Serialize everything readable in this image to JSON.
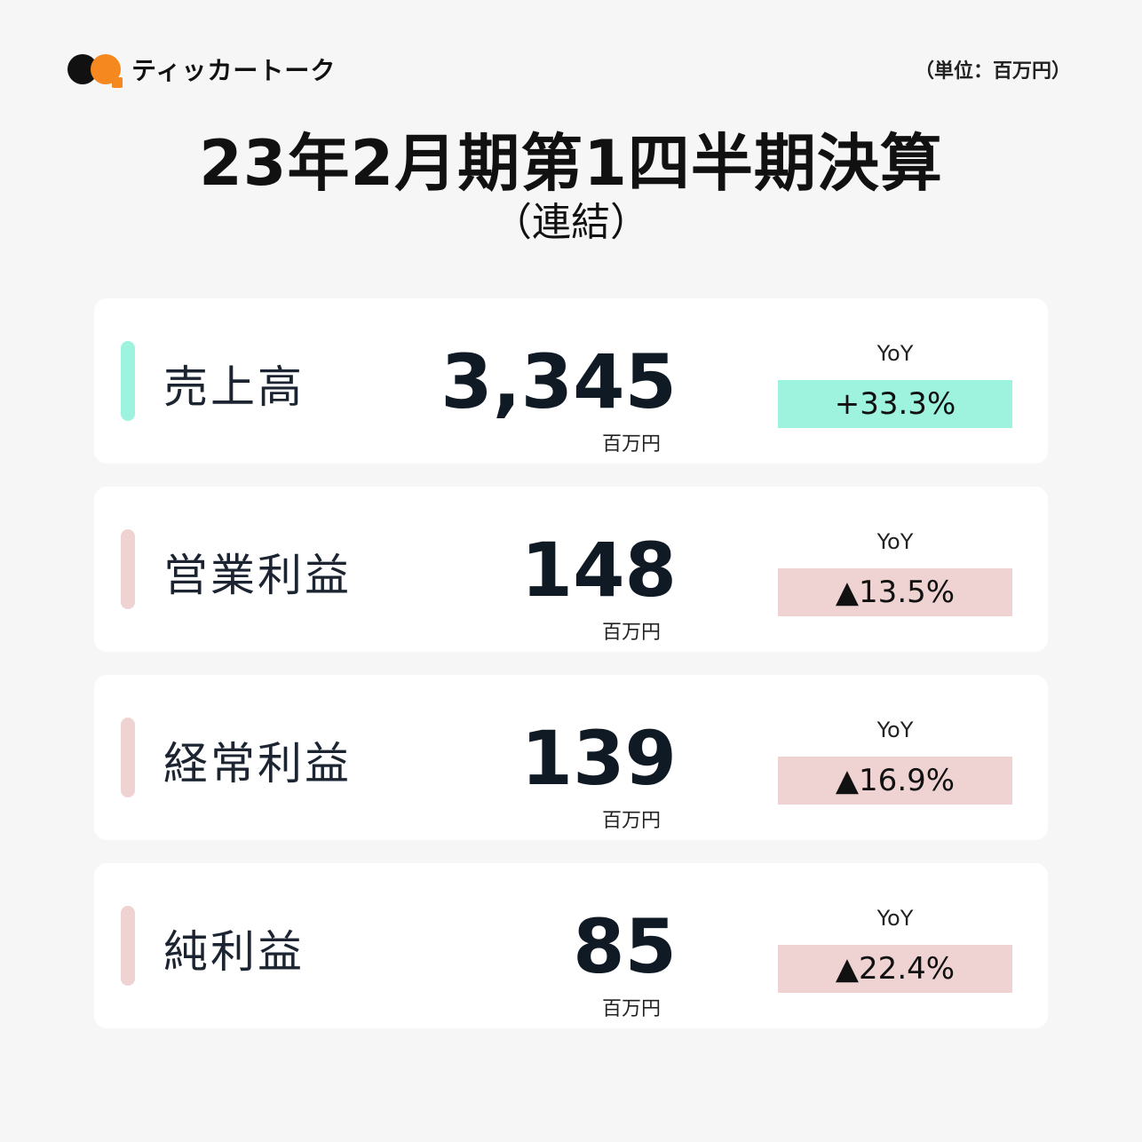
{
  "brand": {
    "name": "ティッカートーク",
    "logo_icon": "two-dots-speech-logo"
  },
  "unit_note": "（単位：百万円）",
  "title": "23年2月期第1四半期決算",
  "subtitle": "（連結）",
  "colors": {
    "positive": "#9ef3df",
    "negative": "#efd3d2"
  },
  "metrics": [
    {
      "label": "売上高",
      "value": "3,345",
      "unit": "百万円",
      "yoy_label": "YoY",
      "yoy": "+33.3%",
      "trend": "positive"
    },
    {
      "label": "営業利益",
      "value": "148",
      "unit": "百万円",
      "yoy_label": "YoY",
      "yoy": "▲13.5%",
      "trend": "negative"
    },
    {
      "label": "経常利益",
      "value": "139",
      "unit": "百万円",
      "yoy_label": "YoY",
      "yoy": "▲16.9%",
      "trend": "negative"
    },
    {
      "label": "純利益",
      "value": "85",
      "unit": "百万円",
      "yoy_label": "YoY",
      "yoy": "▲22.4%",
      "trend": "negative"
    }
  ]
}
